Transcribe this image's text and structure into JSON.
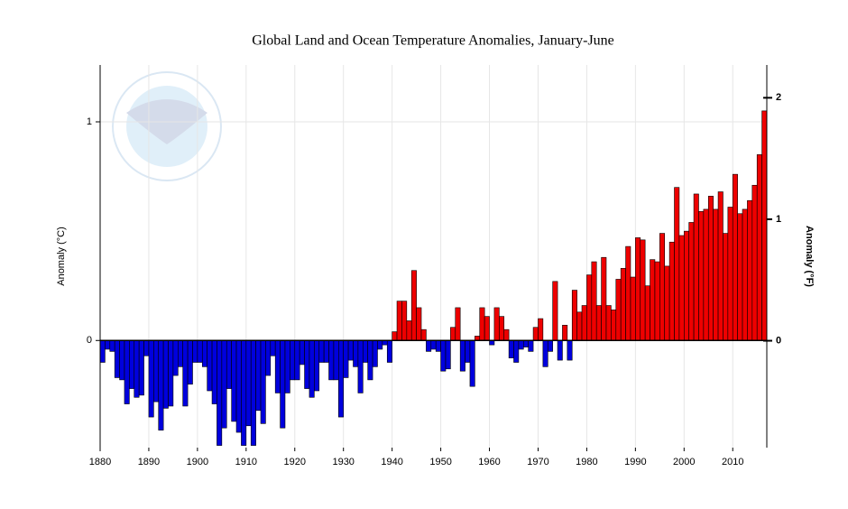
{
  "chart_data": {
    "type": "bar",
    "title": "Global Land and Ocean Temperature Anomalies, January-June",
    "y_label": "Anomaly (°C)",
    "y2_label": "Anomaly (°F)",
    "x": [
      1880,
      1881,
      1882,
      1883,
      1884,
      1885,
      1886,
      1887,
      1888,
      1889,
      1890,
      1891,
      1892,
      1893,
      1894,
      1895,
      1896,
      1897,
      1898,
      1899,
      1900,
      1901,
      1902,
      1903,
      1904,
      1905,
      1906,
      1907,
      1908,
      1909,
      1910,
      1911,
      1912,
      1913,
      1914,
      1915,
      1916,
      1917,
      1918,
      1919,
      1920,
      1921,
      1922,
      1923,
      1924,
      1925,
      1926,
      1927,
      1928,
      1929,
      1930,
      1931,
      1932,
      1933,
      1934,
      1935,
      1936,
      1937,
      1938,
      1939,
      1940,
      1941,
      1942,
      1943,
      1944,
      1945,
      1946,
      1947,
      1948,
      1949,
      1950,
      1951,
      1952,
      1953,
      1954,
      1955,
      1956,
      1957,
      1958,
      1959,
      1960,
      1961,
      1962,
      1963,
      1964,
      1965,
      1966,
      1967,
      1968,
      1969,
      1970,
      1971,
      1972,
      1973,
      1974,
      1975,
      1976,
      1977,
      1978,
      1979,
      1980,
      1981,
      1982,
      1983,
      1984,
      1985,
      1986,
      1987,
      1988,
      1989,
      1990,
      1991,
      1992,
      1993,
      1994,
      1995,
      1996,
      1997,
      1998,
      1999,
      2000,
      2001,
      2002,
      2003,
      2004,
      2005,
      2006,
      2007,
      2008,
      2009,
      2010,
      2011,
      2012,
      2013,
      2014,
      2015,
      2016
    ],
    "values": [
      -0.1,
      -0.04,
      -0.05,
      -0.17,
      -0.18,
      -0.29,
      -0.22,
      -0.26,
      -0.25,
      -0.07,
      -0.35,
      -0.28,
      -0.41,
      -0.31,
      -0.3,
      -0.16,
      -0.12,
      -0.3,
      -0.2,
      -0.1,
      -0.1,
      -0.12,
      -0.23,
      -0.29,
      -0.48,
      -0.4,
      -0.22,
      -0.37,
      -0.42,
      -0.48,
      -0.39,
      -0.48,
      -0.32,
      -0.38,
      -0.16,
      -0.07,
      -0.24,
      -0.4,
      -0.24,
      -0.18,
      -0.18,
      -0.11,
      -0.22,
      -0.26,
      -0.23,
      -0.1,
      -0.1,
      -0.18,
      -0.18,
      -0.35,
      -0.17,
      -0.09,
      -0.12,
      -0.24,
      -0.1,
      -0.18,
      -0.12,
      -0.04,
      -0.02,
      -0.1,
      0.04,
      0.18,
      0.18,
      0.09,
      0.32,
      0.15,
      0.05,
      -0.05,
      -0.04,
      -0.05,
      -0.14,
      -0.13,
      0.06,
      0.15,
      -0.14,
      -0.1,
      -0.21,
      0.02,
      0.15,
      0.11,
      -0.02,
      0.15,
      0.11,
      0.05,
      -0.08,
      -0.1,
      -0.04,
      -0.03,
      -0.05,
      0.06,
      0.1,
      -0.12,
      -0.05,
      0.27,
      -0.09,
      0.07,
      -0.09,
      0.23,
      0.13,
      0.16,
      0.3,
      0.36,
      0.16,
      0.38,
      0.16,
      0.14,
      0.28,
      0.33,
      0.43,
      0.29,
      0.47,
      0.46,
      0.25,
      0.37,
      0.36,
      0.49,
      0.34,
      0.45,
      0.7,
      0.48,
      0.5,
      0.54,
      0.67,
      0.59,
      0.6,
      0.66,
      0.6,
      0.68,
      0.49,
      0.61,
      0.76,
      0.58,
      0.6,
      0.64,
      0.71,
      0.85,
      1.05
    ],
    "positive_color": "#ee0000",
    "negative_color": "#0000dd",
    "xlim": [
      1880,
      2017
    ],
    "xticks": [
      1880,
      1890,
      1900,
      1910,
      1920,
      1930,
      1940,
      1950,
      1960,
      1970,
      1980,
      1990,
      2000,
      2010
    ],
    "ylim": [
      -0.49,
      1.26
    ],
    "yticks": [
      0,
      1
    ],
    "y2lim": [
      -0.88,
      2.27
    ],
    "y2ticks": [
      0,
      1,
      2
    ],
    "grid": true
  }
}
